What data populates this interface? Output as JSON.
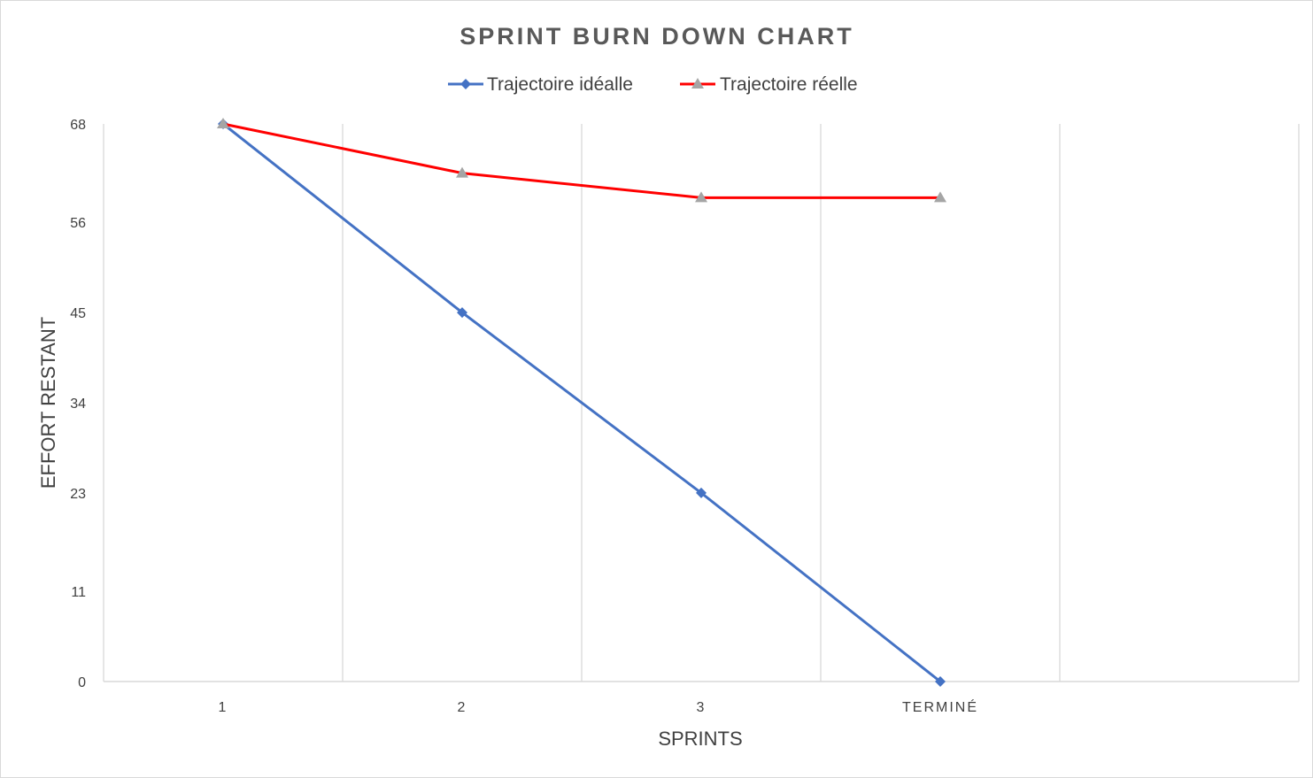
{
  "chart_data": {
    "type": "line",
    "title": "SPRINT BURN DOWN CHART",
    "xlabel": "SPRINTS",
    "ylabel": "EFFORT RESTANT",
    "categories": [
      "1",
      "2",
      "3",
      "TERMINÉ"
    ],
    "yticks": [
      "0",
      "11",
      "23",
      "34",
      "45",
      "56",
      "68"
    ],
    "ylim": [
      0,
      68
    ],
    "grid": "vertical",
    "legend_position": "top",
    "series": [
      {
        "name": "Trajectoire idéalle",
        "values": [
          68,
          45,
          23,
          0
        ],
        "color": "#4472c4",
        "marker": "diamond"
      },
      {
        "name": "Trajectoire réelle",
        "values": [
          68,
          62,
          59,
          59
        ],
        "color": "#ff0000",
        "marker": "triangle",
        "marker_color": "#a5a5a5"
      }
    ]
  }
}
